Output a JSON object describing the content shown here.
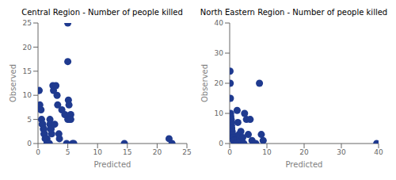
{
  "chart_data": [
    {
      "type": "scatter",
      "title": "Central Region - Number of people killed",
      "xlabel": "Predicted",
      "ylabel": "Observed",
      "color": "#1f3a8f",
      "xlim": [
        0,
        25
      ],
      "ylim": [
        0,
        25
      ],
      "xticks": [
        0,
        5,
        10,
        15,
        20,
        25
      ],
      "yticks": [
        0,
        5,
        10,
        15,
        20,
        25
      ],
      "x": [
        0.2,
        0.3,
        0.5,
        0.6,
        0.7,
        0.8,
        0.9,
        1.0,
        1.0,
        1.1,
        1.2,
        1.3,
        1.5,
        1.5,
        1.6,
        1.7,
        1.8,
        1.9,
        2.0,
        2.0,
        2.1,
        2.2,
        2.3,
        2.5,
        2.6,
        2.8,
        3.0,
        3.2,
        3.3,
        3.5,
        3.6,
        4.0,
        4.5,
        4.8,
        5.0,
        5.0,
        5.0,
        5.1,
        5.2,
        5.3,
        5.5,
        5.5,
        5.8,
        6.0,
        14.5,
        22.0,
        22.5
      ],
      "values": [
        11,
        8,
        7,
        5,
        4,
        4,
        3,
        3,
        2,
        2,
        1,
        1,
        1,
        0,
        0,
        0,
        0,
        0,
        5,
        4,
        3,
        3,
        2,
        12,
        11,
        4,
        12,
        10,
        8,
        2,
        1,
        7,
        6,
        0,
        25,
        17,
        5,
        9,
        8,
        5,
        6,
        5,
        0,
        0,
        0,
        1,
        0
      ]
    },
    {
      "type": "scatter",
      "title": "North Eastern Region - Number of people killed",
      "xlabel": "Predicted",
      "ylabel": "Observed",
      "color": "#1f3a8f",
      "xlim": [
        0,
        40
      ],
      "ylim": [
        0,
        40
      ],
      "xticks": [
        0,
        10,
        20,
        30,
        40
      ],
      "yticks": [
        0,
        10,
        20,
        30,
        40
      ],
      "x": [
        0.1,
        0.15,
        0.2,
        0.25,
        0.3,
        0.35,
        0.4,
        0.45,
        0.5,
        0.5,
        0.55,
        0.6,
        0.65,
        0.7,
        0.75,
        0.8,
        0.85,
        0.9,
        0.95,
        1.0,
        1.0,
        1.05,
        1.1,
        1.2,
        1.3,
        1.4,
        1.5,
        1.6,
        1.8,
        2.0,
        2.2,
        2.5,
        2.8,
        3.0,
        3.2,
        3.5,
        3.8,
        4.0,
        4.5,
        5.0,
        5.5,
        6.0,
        6.5,
        7.0,
        8.0,
        8.5,
        9.0,
        39.5
      ],
      "values": [
        24,
        20,
        15,
        10,
        9,
        8,
        8,
        7,
        6,
        5,
        5,
        4,
        4,
        3,
        3,
        3,
        2,
        2,
        2,
        2,
        1,
        1,
        1,
        1,
        1,
        0,
        0,
        0,
        0,
        11,
        7,
        3,
        2,
        4,
        1,
        2,
        0,
        10,
        8,
        3,
        8,
        1,
        0,
        0,
        20,
        3,
        1,
        0
      ]
    }
  ]
}
